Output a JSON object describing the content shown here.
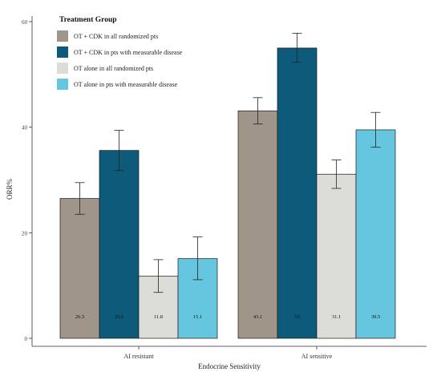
{
  "chart_data": {
    "type": "bar",
    "title": "",
    "xlabel": "Endocrine Sensitivity",
    "ylabel": "ORR%",
    "ylim": [
      0,
      60
    ],
    "yticks": [
      0,
      20,
      40,
      60
    ],
    "grid": false,
    "legend": {
      "title": "Treatment Group",
      "placement": "top-left"
    },
    "categories": [
      "AI resistant",
      "AI sensitive"
    ],
    "series": [
      {
        "name": "OT + CDK in all randomized pts",
        "color": "#a09589",
        "values": [
          26.5,
          43.1
        ],
        "labels": [
          "26.5",
          "43.1"
        ],
        "err_low": [
          23.5,
          40.6
        ],
        "err_high": [
          29.5,
          45.6
        ]
      },
      {
        "name": "OT + CDK in pts with measurable disease",
        "color": "#0e5a7a",
        "values": [
          35.6,
          55
        ],
        "labels": [
          "35.6",
          "55"
        ],
        "err_low": [
          31.8,
          52.3
        ],
        "err_high": [
          39.4,
          57.8
        ]
      },
      {
        "name": "OT  alone in all randomized pts",
        "color": "#dcdcd8",
        "values": [
          11.8,
          31.1
        ],
        "labels": [
          "11.8",
          "31.1"
        ],
        "err_low": [
          8.7,
          28.4
        ],
        "err_high": [
          14.9,
          33.8
        ]
      },
      {
        "name": "OT alone in pts with measurable disease",
        "color": "#66c6df",
        "values": [
          15.1,
          39.5
        ],
        "labels": [
          "15.1",
          "39.5"
        ],
        "err_low": [
          11.1,
          36.2
        ],
        "err_high": [
          19.2,
          42.8
        ]
      }
    ]
  }
}
